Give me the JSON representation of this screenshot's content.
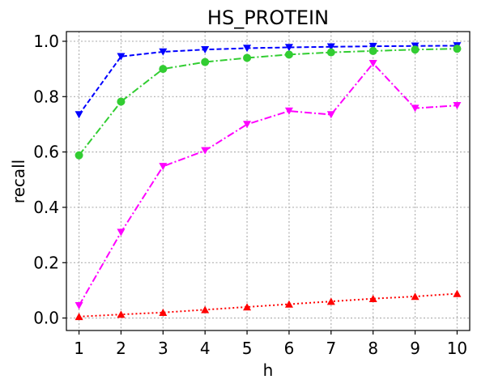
{
  "chart_data": {
    "type": "line",
    "title": "HS_PROTEIN",
    "xlabel": "h",
    "ylabel": "recall",
    "x": [
      1,
      2,
      3,
      4,
      5,
      6,
      7,
      8,
      9,
      10
    ],
    "xlim": [
      0.7,
      10.3
    ],
    "ylim": [
      -0.045,
      1.035
    ],
    "xticks": [
      "1",
      "2",
      "3",
      "4",
      "5",
      "6",
      "7",
      "8",
      "9",
      "10"
    ],
    "yticks": [
      "0.0",
      "0.2",
      "0.4",
      "0.6",
      "0.8",
      "1.0"
    ],
    "grid": true,
    "series": [
      {
        "color": "#0000ff",
        "marker": "triangle-down",
        "linestyle": "dashed",
        "values": [
          0.735,
          0.945,
          0.962,
          0.97,
          0.975,
          0.978,
          0.98,
          0.982,
          0.983,
          0.984
        ]
      },
      {
        "color": "#32cd32",
        "marker": "circle",
        "linestyle": "dashdot",
        "values": [
          0.588,
          0.782,
          0.9,
          0.925,
          0.94,
          0.952,
          0.96,
          0.965,
          0.97,
          0.973
        ]
      },
      {
        "color": "#ff00ff",
        "marker": "triangle-down",
        "linestyle": "dashdot",
        "values": [
          0.045,
          0.31,
          0.548,
          0.605,
          0.7,
          0.748,
          0.735,
          0.92,
          0.758,
          0.768
        ]
      },
      {
        "color": "#ff0000",
        "marker": "triangle-up",
        "linestyle": "dotted",
        "values": [
          0.005,
          0.013,
          0.02,
          0.03,
          0.04,
          0.05,
          0.06,
          0.07,
          0.078,
          0.088
        ]
      }
    ]
  }
}
